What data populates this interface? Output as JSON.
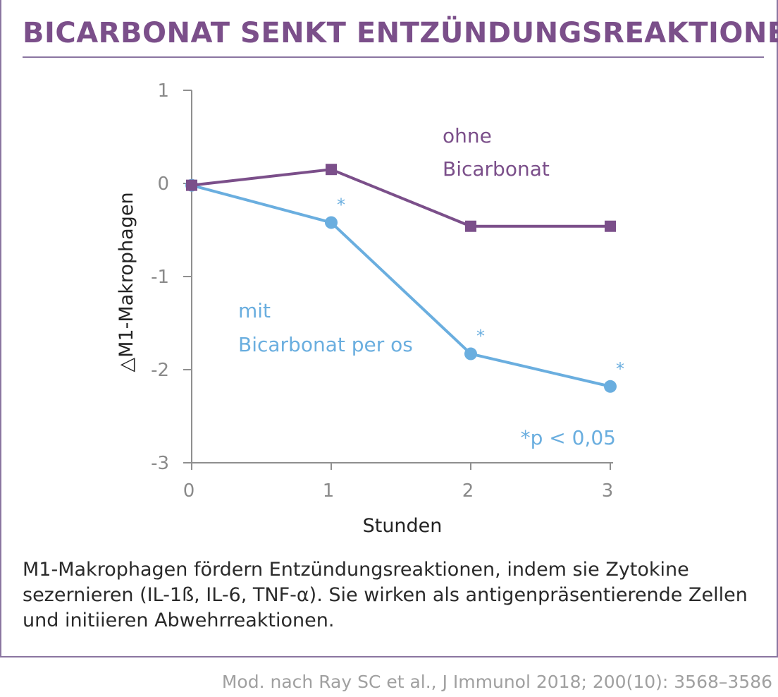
{
  "header": {
    "title": "BICARBONAT SENKT ENTZÜNDUNGSREAKTIONEN"
  },
  "colors": {
    "title": "#7b4f8a",
    "without_series": "#7b4f8a",
    "with_series": "#6aaedf",
    "axis": "#8f8f8f",
    "frame": "#8b76a1"
  },
  "chart_data": {
    "type": "line",
    "title": "",
    "xlabel": "Stunden",
    "ylabel": "△M1-Makrophagen",
    "x": [
      0,
      1,
      2,
      3
    ],
    "xlim": [
      0,
      3
    ],
    "ylim": [
      -3,
      1
    ],
    "xticks": [
      "0",
      "1",
      "2",
      "3"
    ],
    "yticks": [
      "1",
      "0",
      "-1",
      "-2",
      "-3"
    ],
    "grid": false,
    "series": [
      {
        "name": "ohne Bicarbonat",
        "label_lines": [
          "ohne",
          "Bicarbonat"
        ],
        "marker": "square",
        "values": [
          -0.02,
          0.15,
          -0.46,
          -0.46
        ],
        "significant": [
          false,
          false,
          false,
          false
        ]
      },
      {
        "name": "mit Bicarbonat per os",
        "label_lines": [
          "mit",
          "Bicarbonat per os"
        ],
        "marker": "circle",
        "values": [
          -0.02,
          -0.42,
          -1.83,
          -2.18
        ],
        "significant": [
          false,
          true,
          true,
          true
        ]
      }
    ],
    "significance_mark": "*",
    "annotation": "*p < 0,05"
  },
  "description": "M1-Makrophagen fördern Entzündungsreaktionen, indem sie Zytokine sezernieren (IL-1ß, IL-6, TNF-α). Sie wirken als antigenpräsentierende Zellen und initiieren Abwehrreaktionen.",
  "source": "Mod. nach Ray SC et al., J Immunol 2018; 200(10): 3568–3586"
}
